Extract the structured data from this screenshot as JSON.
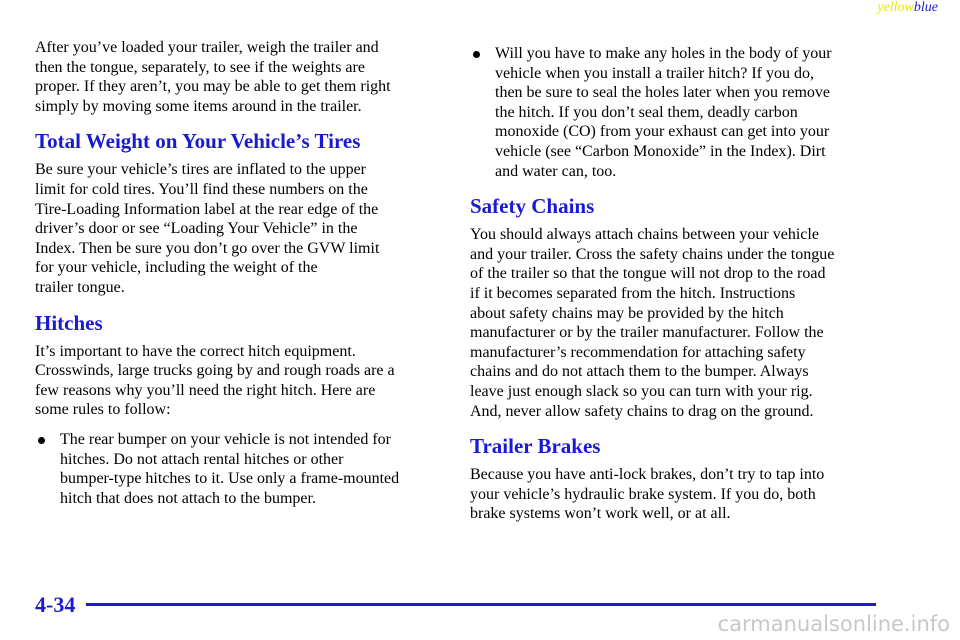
{
  "header": {
    "tag_yellow": "yellow",
    "tag_blue": "blue"
  },
  "left": [
    {
      "paragraph": [
        "After you’ve loaded your trailer, weigh the trailer and",
        "then the tongue, separately, to see if the weights are",
        "proper. If they aren’t, you may be able to get them right",
        "simply by moving some items around in the trailer."
      ]
    },
    {
      "heading": "Total Weight on Your Vehicle’s Tires"
    },
    {
      "paragraph": [
        "Be sure your vehicle’s tires are inflated to the upper",
        "limit for cold tires. You’ll find these numbers on the",
        "Tire-Loading Information label at the rear edge of the",
        "driver’s door or see “Loading Your Vehicle” in the",
        "Index. Then be sure you don’t go over the GVW limit",
        "for your vehicle, including the weight of the",
        "trailer tongue."
      ]
    },
    {
      "heading": "Hitches"
    },
    {
      "paragraph": [
        "It’s important to have the correct hitch equipment.",
        "Crosswinds, large trucks going by and rough roads are a",
        "few reasons why you’ll need the right hitch. Here are",
        "some rules to follow:"
      ]
    },
    {
      "bullet": [
        "The rear bumper on your vehicle is not intended for",
        "hitches. Do not attach rental hitches or other",
        "bumper-type hitches to it. Use only a frame-mounted",
        "hitch that does not attach to the bumper."
      ]
    }
  ],
  "right": [
    {
      "bullet": [
        "Will you have to make any holes in the body of your",
        "vehicle when you install a trailer hitch? If you do,",
        "then be sure to seal the holes later when you remove",
        "the hitch. If you don’t seal them, deadly carbon",
        "monoxide (CO) from your exhaust can get into your",
        "vehicle (see “Carbon Monoxide” in the Index). Dirt",
        "and water can, too."
      ]
    },
    {
      "heading": "Safety Chains"
    },
    {
      "paragraph": [
        "You should always attach chains between your vehicle",
        "and your trailer. Cross the safety chains under the tongue",
        "of the trailer so that the tongue will not drop to the road",
        "if it becomes separated from the hitch. Instructions",
        "about safety chains may be provided by the hitch",
        "manufacturer or by the trailer manufacturer. Follow the",
        "manufacturer’s recommendation for attaching safety",
        "chains and do not attach them to the bumper. Always",
        "leave just enough slack so you can turn with your rig.",
        "And, never allow safety chains to drag on the ground."
      ]
    },
    {
      "heading": "Trailer Brakes"
    },
    {
      "paragraph": [
        "Because you have anti-lock brakes, don’t try to tap into",
        "your vehicle’s hydraulic brake system. If you do, both",
        "brake systems won’t work well, or at all."
      ]
    }
  ],
  "footer": {
    "page": "4-34",
    "watermark": "carmanualsonline.info"
  }
}
